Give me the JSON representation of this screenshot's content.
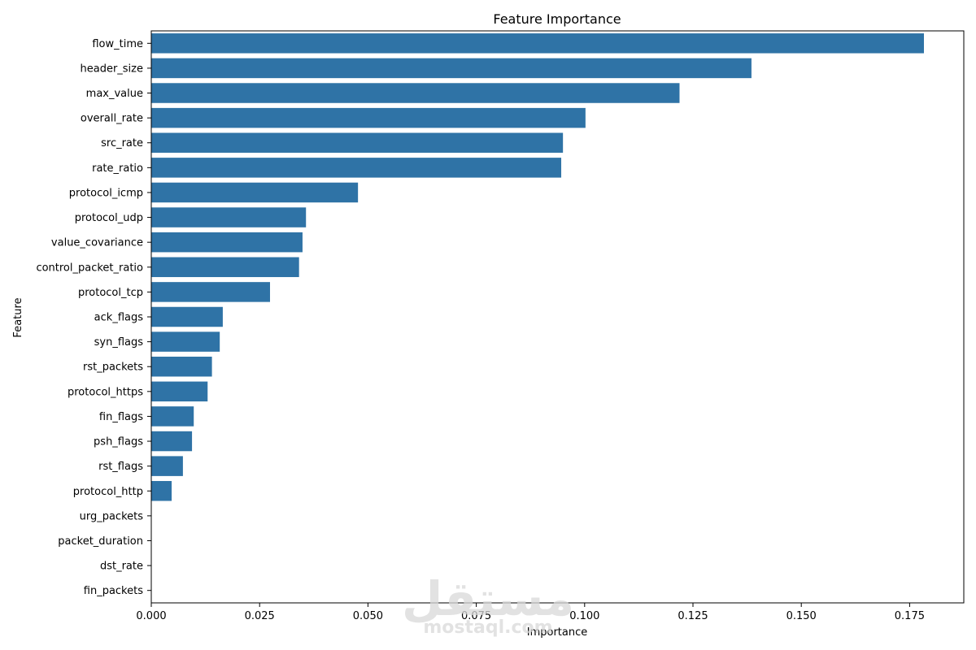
{
  "chart_data": {
    "type": "bar",
    "orientation": "horizontal",
    "title": "Feature Importance",
    "xlabel": "Importance",
    "ylabel": "Feature",
    "xlim": [
      0,
      0.1875
    ],
    "xticks": [
      0.0,
      0.025,
      0.05,
      0.075,
      0.1,
      0.125,
      0.15,
      0.175
    ],
    "xtick_labels": [
      "0.000",
      "0.025",
      "0.050",
      "0.075",
      "0.100",
      "0.125",
      "0.150",
      "0.175"
    ],
    "grid": false,
    "bar_color": "#2f73a6",
    "categories": [
      "flow_time",
      "header_size",
      "max_value",
      "overall_rate",
      "src_rate",
      "rate_ratio",
      "protocol_icmp",
      "protocol_udp",
      "value_covariance",
      "control_packet_ratio",
      "protocol_tcp",
      "ack_flags",
      "syn_flags",
      "rst_packets",
      "protocol_https",
      "fin_flags",
      "psh_flags",
      "rst_flags",
      "protocol_http",
      "urg_packets",
      "packet_duration",
      "dst_rate",
      "fin_packets"
    ],
    "values": [
      0.1783,
      0.1385,
      0.1219,
      0.1002,
      0.095,
      0.0946,
      0.0477,
      0.0357,
      0.0349,
      0.0341,
      0.0274,
      0.0165,
      0.0158,
      0.014,
      0.013,
      0.0098,
      0.0094,
      0.0073,
      0.0047,
      0.0,
      0.0,
      0.0,
      0.0
    ]
  },
  "watermark": {
    "arabic": "مستقل",
    "latin": "mostaql.com"
  }
}
